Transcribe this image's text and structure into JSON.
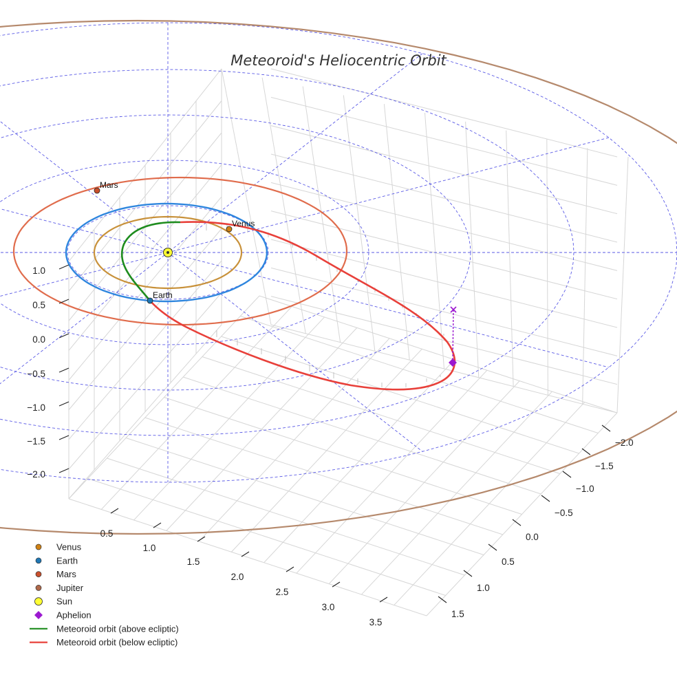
{
  "chart_data": {
    "type": "3d-line",
    "title": "Meteoroid's Heliocentric Orbit",
    "axes": {
      "x": {
        "label": "",
        "ticks": [
          "0.5",
          "1.0",
          "1.5",
          "2.0",
          "2.5",
          "3.0",
          "3.5"
        ]
      },
      "y": {
        "label": "",
        "ticks": [
          "−2.0",
          "−1.5",
          "−1.0",
          "−0.5",
          "0.0",
          "0.5",
          "1.0",
          "1.5"
        ]
      },
      "z": {
        "label": "",
        "ticks": [
          "1.0",
          "0.5",
          "0.0",
          "−0.5",
          "−1.0",
          "−1.5",
          "−2.0"
        ]
      }
    },
    "planets": [
      {
        "name": "Venus",
        "a_au": 0.72,
        "color": "#c8913a",
        "marker_color": "#d08214",
        "labeled": true
      },
      {
        "name": "Earth",
        "a_au": 1.0,
        "color": "#2e86de",
        "marker_color": "#1f77b4",
        "labeled": true
      },
      {
        "name": "Mars",
        "a_au": 1.52,
        "color": "#e06c4c",
        "marker_color": "#c9502d",
        "labeled": true
      },
      {
        "name": "Jupiter",
        "a_au": 5.2,
        "color": "#b5896c",
        "marker_color": "#b0694a",
        "labeled": false
      }
    ],
    "sun": {
      "name": "Sun",
      "x": 0,
      "y": 0,
      "z": 0,
      "color": "#ffff33"
    },
    "meteoroid_orbit": {
      "perihelion_au": 0.72,
      "aphelion_au": 4.0,
      "segments": [
        {
          "name": "Meteoroid orbit (above ecliptic)",
          "color": "#1e8c1e"
        },
        {
          "name": "Meteoroid orbit (below ecliptic)",
          "color": "#e8403a"
        }
      ]
    },
    "aphelion": {
      "name": "Aphelion",
      "color": "#9b19d0"
    },
    "reference_grid": {
      "style": "dashed",
      "color": "#5a5ae6",
      "rings_au": [
        1,
        2,
        3,
        4,
        5
      ]
    },
    "legend": {
      "position": "bottom-left",
      "entries": [
        {
          "label": "Venus",
          "marker": "circle",
          "color": "#d08214"
        },
        {
          "label": "Earth",
          "marker": "circle",
          "color": "#1f77b4"
        },
        {
          "label": "Mars",
          "marker": "circle",
          "color": "#c9502d"
        },
        {
          "label": "Jupiter",
          "marker": "circle",
          "color": "#b0694a"
        },
        {
          "label": "Sun",
          "marker": "big-circle",
          "color": "#ffff33"
        },
        {
          "label": "Aphelion",
          "marker": "diamond",
          "color": "#9b19d0"
        },
        {
          "label": "Meteoroid orbit (above ecliptic)",
          "marker": "line",
          "color": "#1e8c1e"
        },
        {
          "label": "Meteoroid orbit (below ecliptic)",
          "marker": "line",
          "color": "#e8403a"
        }
      ]
    }
  }
}
